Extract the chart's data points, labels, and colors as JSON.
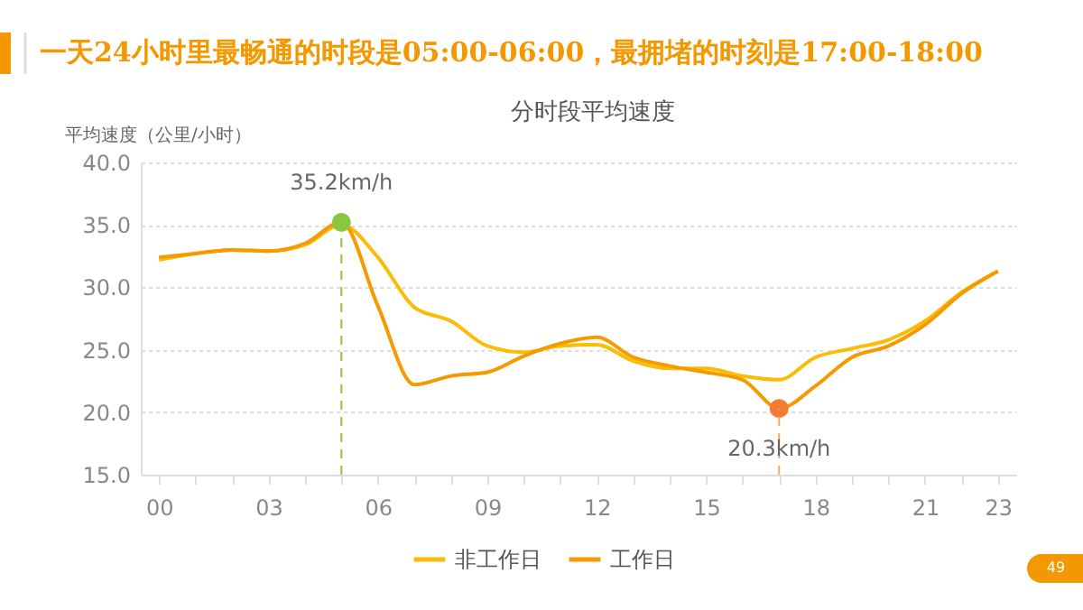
{
  "chart_data": {
    "type": "line",
    "title": "一天24小时里最畅通的时段是05:00-06:00，最拥堵的时刻是17:00-18:00",
    "subtitle": "分时段平均速度",
    "ylabel": "平均速度（公里/小时）",
    "x": [
      0,
      1,
      2,
      3,
      4,
      5,
      6,
      7,
      8,
      9,
      10,
      11,
      12,
      13,
      14,
      15,
      16,
      17,
      18,
      19,
      20,
      21,
      22,
      23
    ],
    "series": [
      {
        "name": "非工作日",
        "color": "#fbbc05",
        "values": [
          32.2,
          32.7,
          33.0,
          32.9,
          33.4,
          35.0,
          32.4,
          28.4,
          27.3,
          25.3,
          24.8,
          25.3,
          25.4,
          24.1,
          23.5,
          23.5,
          22.9,
          22.6,
          24.4,
          25.1,
          25.8,
          27.3,
          29.6,
          31.3
        ]
      },
      {
        "name": "工作日",
        "color": "#f59a00",
        "values": [
          32.4,
          32.7,
          33.0,
          32.9,
          33.5,
          35.2,
          28.5,
          22.2,
          22.9,
          23.2,
          24.5,
          25.5,
          26.0,
          24.4,
          23.7,
          23.2,
          22.6,
          20.3,
          22.1,
          24.4,
          25.3,
          27.0,
          29.5,
          31.3
        ]
      },
      {
        "type": "scatter",
        "marker": "circle",
        "color": "#8cc63f",
        "x": [
          5
        ],
        "values": [
          35.2
        ]
      },
      {
        "type": "scatter",
        "marker": "circle",
        "color": "#f47b30",
        "x": [
          17
        ],
        "values": [
          20.3
        ]
      }
    ],
    "xlim": [
      -0.5,
      23.5
    ],
    "xticks": [
      {
        "value": 0,
        "label": "00"
      },
      {
        "value": 1,
        "label": null
      },
      {
        "value": 2,
        "label": null
      },
      {
        "value": 3,
        "label": "03"
      },
      {
        "value": 4,
        "label": null
      },
      {
        "value": 5,
        "label": null
      },
      {
        "value": 6,
        "label": "06"
      },
      {
        "value": 7,
        "label": null
      },
      {
        "value": 8,
        "label": null
      },
      {
        "value": 9,
        "label": "09"
      },
      {
        "value": 10,
        "label": null
      },
      {
        "value": 11,
        "label": null
      },
      {
        "value": 12,
        "label": "12"
      },
      {
        "value": 13,
        "label": null
      },
      {
        "value": 14,
        "label": null
      },
      {
        "value": 15,
        "label": "15"
      },
      {
        "value": 16,
        "label": null
      },
      {
        "value": 17,
        "label": null
      },
      {
        "value": 18,
        "label": "18"
      },
      {
        "value": 19,
        "label": null
      },
      {
        "value": 20,
        "label": null
      },
      {
        "value": 21,
        "label": "21"
      },
      {
        "value": 22,
        "label": null
      },
      {
        "value": 23,
        "label": "23"
      }
    ],
    "ylim": [
      15,
      40
    ],
    "yticks": [
      {
        "value": 15,
        "label": "15.0"
      },
      {
        "value": 20,
        "label": "20.0"
      },
      {
        "value": 25,
        "label": "25.0"
      },
      {
        "value": 30,
        "label": "30.0"
      },
      {
        "value": 35,
        "label": "35.0"
      },
      {
        "value": 40,
        "label": "40.0"
      }
    ],
    "ref_lines": [
      {
        "axis": "x",
        "value": 5,
        "color": "#8cc63f",
        "line_style": "dashed"
      },
      {
        "axis": "x",
        "value": 17,
        "color": "#f9a66c",
        "line_style": "dashed"
      }
    ],
    "annotations": [
      {
        "text": "35.2km/h",
        "x": 5,
        "y": 35.2
      },
      {
        "text": "20.3km/h",
        "x": 17,
        "y": 20.3
      },
      "49"
    ],
    "grid": "y",
    "legend": "bottom",
    "line_style": "solid"
  }
}
